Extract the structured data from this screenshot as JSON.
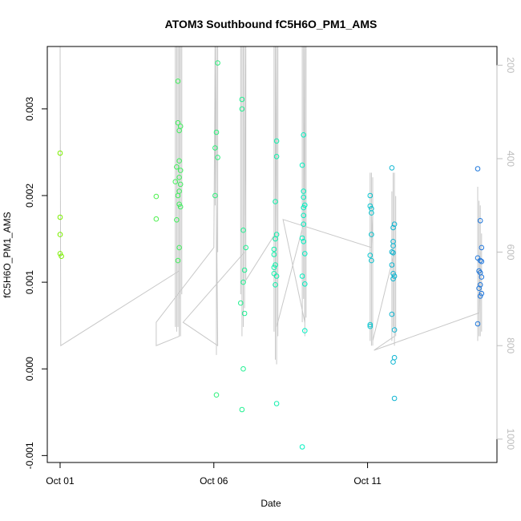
{
  "chart_data": {
    "type": "scatter",
    "title": "ATOM3 Southbound fC5H6O_PM1_AMS",
    "xlabel": "Date",
    "ylabel": "fC5H6O_PM1_AMS",
    "xlim": [
      "2017-09-30T14:00",
      "2017-10-15T05:00"
    ],
    "ylim": [
      -0.00108,
      0.00372
    ],
    "x_ticks": [
      {
        "date": "2017-10-01T00:00",
        "label": "Oct 01"
      },
      {
        "date": "2017-10-06T00:00",
        "label": "Oct 06"
      },
      {
        "date": "2017-10-11T00:00",
        "label": "Oct 11"
      }
    ],
    "y_ticks": [
      {
        "value": -0.001,
        "label": "-0.001"
      },
      {
        "value": 0.0,
        "label": "0.000"
      },
      {
        "value": 0.001,
        "label": "0.001"
      },
      {
        "value": 0.002,
        "label": "0.002"
      },
      {
        "value": 0.003,
        "label": "0.003"
      }
    ],
    "right_axis": {
      "description": "secondary axis (grey trace), reversed",
      "range": [
        1050,
        160
      ],
      "ticks": [
        {
          "value": 200,
          "label": "200"
        },
        {
          "value": 400,
          "label": "400"
        },
        {
          "value": 600,
          "label": "600"
        },
        {
          "value": 800,
          "label": "800"
        },
        {
          "value": 1000,
          "label": "1000"
        }
      ]
    },
    "grid": false,
    "colors": {
      "trace": "#c8c8c8",
      "palette_start": "#7cf000",
      "palette_mid": "#00f0c8",
      "palette_end": "#1e78dc"
    },
    "points": [
      {
        "t": "2017-10-01T00:00",
        "y": 0.00249
      },
      {
        "t": "2017-10-01T00:00",
        "y": 0.00175
      },
      {
        "t": "2017-10-01T00:00",
        "y": 0.00155
      },
      {
        "t": "2017-10-01T00:00",
        "y": 0.00133
      },
      {
        "t": "2017-10-01T01:00",
        "y": 0.0013
      },
      {
        "t": "2017-10-04T03:00",
        "y": 0.00199
      },
      {
        "t": "2017-10-04T03:00",
        "y": 0.00173
      },
      {
        "t": "2017-10-04T20:00",
        "y": 0.00332
      },
      {
        "t": "2017-10-04T20:00",
        "y": 0.00284
      },
      {
        "t": "2017-10-04T19:00",
        "y": 0.00233
      },
      {
        "t": "2017-10-04T18:00",
        "y": 0.00216
      },
      {
        "t": "2017-10-04T20:00",
        "y": 0.002
      },
      {
        "t": "2017-10-04T19:00",
        "y": 0.00172
      },
      {
        "t": "2017-10-04T21:00",
        "y": 0.0014
      },
      {
        "t": "2017-10-04T20:00",
        "y": 0.00125
      },
      {
        "t": "2017-10-04T22:00",
        "y": 0.0028
      },
      {
        "t": "2017-10-04T21:00",
        "y": 0.00275
      },
      {
        "t": "2017-10-04T21:00",
        "y": 0.0024
      },
      {
        "t": "2017-10-04T22:00",
        "y": 0.00229
      },
      {
        "t": "2017-10-04T21:00",
        "y": 0.00221
      },
      {
        "t": "2017-10-04T22:00",
        "y": 0.00213
      },
      {
        "t": "2017-10-04T21:00",
        "y": 0.00205
      },
      {
        "t": "2017-10-04T21:00",
        "y": 0.0019
      },
      {
        "t": "2017-10-04T22:00",
        "y": 0.00187
      },
      {
        "t": "2017-10-06T03:00",
        "y": 0.00353
      },
      {
        "t": "2017-10-06T02:00",
        "y": 0.00273
      },
      {
        "t": "2017-10-06T01:00",
        "y": 0.00255
      },
      {
        "t": "2017-10-06T03:00",
        "y": 0.00244
      },
      {
        "t": "2017-10-06T01:00",
        "y": 0.002
      },
      {
        "t": "2017-10-06T02:00",
        "y": -0.0003
      },
      {
        "t": "2017-10-06T22:00",
        "y": 0.00311
      },
      {
        "t": "2017-10-06T22:00",
        "y": 0.003
      },
      {
        "t": "2017-10-06T23:00",
        "y": 0.0016
      },
      {
        "t": "2017-10-07T01:00",
        "y": 0.0014
      },
      {
        "t": "2017-10-07T00:00",
        "y": 0.00114
      },
      {
        "t": "2017-10-06T23:00",
        "y": 0.001
      },
      {
        "t": "2017-10-06T21:00",
        "y": 0.00076
      },
      {
        "t": "2017-10-07T00:00",
        "y": 0.00064
      },
      {
        "t": "2017-10-06T23:00",
        "y": 0.0
      },
      {
        "t": "2017-10-06T22:00",
        "y": -0.00047
      },
      {
        "t": "2017-10-08T01:00",
        "y": 0.00263
      },
      {
        "t": "2017-10-08T01:00",
        "y": 0.00245
      },
      {
        "t": "2017-10-08T00:00",
        "y": 0.00193
      },
      {
        "t": "2017-10-08T01:00",
        "y": 0.00155
      },
      {
        "t": "2017-10-08T00:00",
        "y": 0.0015
      },
      {
        "t": "2017-10-07T23:00",
        "y": 0.00138
      },
      {
        "t": "2017-10-07T23:00",
        "y": 0.00132
      },
      {
        "t": "2017-10-08T00:00",
        "y": 0.0012
      },
      {
        "t": "2017-10-07T23:00",
        "y": 0.00117
      },
      {
        "t": "2017-10-07T23:00",
        "y": 0.0011
      },
      {
        "t": "2017-10-08T01:00",
        "y": 0.00107
      },
      {
        "t": "2017-10-08T00:00",
        "y": 0.00097
      },
      {
        "t": "2017-10-08T01:00",
        "y": -0.0004
      },
      {
        "t": "2017-10-08T21:00",
        "y": 0.00235
      },
      {
        "t": "2017-10-08T22:00",
        "y": 0.0027
      },
      {
        "t": "2017-10-08T22:00",
        "y": 0.00205
      },
      {
        "t": "2017-10-08T22:00",
        "y": 0.00198
      },
      {
        "t": "2017-10-08T23:00",
        "y": 0.00189
      },
      {
        "t": "2017-10-08T22:00",
        "y": 0.00186
      },
      {
        "t": "2017-10-08T22:00",
        "y": 0.00177
      },
      {
        "t": "2017-10-08T22:00",
        "y": 0.00167
      },
      {
        "t": "2017-10-08T21:00",
        "y": 0.00151
      },
      {
        "t": "2017-10-08T22:00",
        "y": 0.00147
      },
      {
        "t": "2017-10-08T23:00",
        "y": 0.00133
      },
      {
        "t": "2017-10-08T21:00",
        "y": 0.00107
      },
      {
        "t": "2017-10-08T23:00",
        "y": 0.00098
      },
      {
        "t": "2017-10-08T23:00",
        "y": 0.00044
      },
      {
        "t": "2017-10-08T21:00",
        "y": -0.0009
      },
      {
        "t": "2017-10-11T02:00",
        "y": 0.002
      },
      {
        "t": "2017-10-11T02:00",
        "y": 0.00188
      },
      {
        "t": "2017-10-11T03:00",
        "y": 0.00185
      },
      {
        "t": "2017-10-11T03:00",
        "y": 0.0018
      },
      {
        "t": "2017-10-11T03:00",
        "y": 0.00155
      },
      {
        "t": "2017-10-11T02:00",
        "y": 0.00131
      },
      {
        "t": "2017-10-11T03:00",
        "y": 0.00125
      },
      {
        "t": "2017-10-11T02:00",
        "y": 0.00051
      },
      {
        "t": "2017-10-11T02:00",
        "y": 0.00049
      },
      {
        "t": "2017-10-11T19:00",
        "y": 0.00232
      },
      {
        "t": "2017-10-11T20:00",
        "y": 0.00163
      },
      {
        "t": "2017-10-11T21:00",
        "y": 0.00167
      },
      {
        "t": "2017-10-11T20:00",
        "y": 0.00147
      },
      {
        "t": "2017-10-11T20:00",
        "y": 0.00142
      },
      {
        "t": "2017-10-11T19:00",
        "y": 0.00135
      },
      {
        "t": "2017-10-11T20:00",
        "y": 0.00134
      },
      {
        "t": "2017-10-11T19:00",
        "y": 0.0012
      },
      {
        "t": "2017-10-11T20:00",
        "y": 0.0011
      },
      {
        "t": "2017-10-11T21:00",
        "y": 0.00107
      },
      {
        "t": "2017-10-11T20:00",
        "y": 0.00104
      },
      {
        "t": "2017-10-11T19:00",
        "y": 0.00063
      },
      {
        "t": "2017-10-11T21:00",
        "y": 0.00045
      },
      {
        "t": "2017-10-11T21:00",
        "y": 0.00013
      },
      {
        "t": "2017-10-11T20:00",
        "y": 8e-05
      },
      {
        "t": "2017-10-11T21:00",
        "y": -0.00034
      },
      {
        "t": "2017-10-14T14:00",
        "y": 0.00231
      },
      {
        "t": "2017-10-14T16:00",
        "y": 0.00171
      },
      {
        "t": "2017-10-14T17:00",
        "y": 0.0014
      },
      {
        "t": "2017-10-14T14:00",
        "y": 0.00128
      },
      {
        "t": "2017-10-14T16:00",
        "y": 0.00125
      },
      {
        "t": "2017-10-14T17:00",
        "y": 0.00124
      },
      {
        "t": "2017-10-14T15:00",
        "y": 0.00113
      },
      {
        "t": "2017-10-14T16:00",
        "y": 0.00111
      },
      {
        "t": "2017-10-14T17:00",
        "y": 0.00106
      },
      {
        "t": "2017-10-14T16:00",
        "y": 0.00097
      },
      {
        "t": "2017-10-14T15:00",
        "y": 0.00093
      },
      {
        "t": "2017-10-14T17:00",
        "y": 0.00087
      },
      {
        "t": "2017-10-14T16:00",
        "y": 0.00084
      },
      {
        "t": "2017-10-14T14:00",
        "y": 0.00052
      }
    ],
    "trace": [
      {
        "t": "2017-10-01T00:00",
        "r": 160
      },
      {
        "t": "2017-10-01T00:30",
        "r": 800
      },
      {
        "t": "2017-10-04T21:00",
        "r": 640
      },
      {
        "t": "2017-10-04T21:00",
        "r": 160
      },
      {
        "t": "2017-10-04T21:00",
        "r": 780
      },
      {
        "t": "2017-10-04T03:00",
        "r": 800
      },
      {
        "t": "2017-10-04T03:00",
        "r": 750
      },
      {
        "t": "2017-10-06T00:00",
        "r": 590
      },
      {
        "t": "2017-10-06T01:00",
        "r": 160
      },
      {
        "t": "2017-10-06T03:00",
        "r": 800
      },
      {
        "t": "2017-10-05T00:00",
        "r": 750
      },
      {
        "t": "2017-10-07T00:00",
        "r": 600
      },
      {
        "t": "2017-10-07T01:00",
        "r": 160
      },
      {
        "t": "2017-10-07T01:00",
        "r": 660
      },
      {
        "t": "2017-10-08T00:00",
        "r": 560
      },
      {
        "t": "2017-10-08T01:00",
        "r": 160
      },
      {
        "t": "2017-10-08T01:00",
        "r": 760
      },
      {
        "t": "2017-10-08T22:00",
        "r": 540
      },
      {
        "t": "2017-10-08T23:00",
        "r": 160
      },
      {
        "t": "2017-10-08T23:00",
        "r": 750
      },
      {
        "t": "2017-10-08T06:00",
        "r": 530
      },
      {
        "t": "2017-10-11T03:00",
        "r": 590
      },
      {
        "t": "2017-10-11T04:00",
        "r": 520
      },
      {
        "t": "2017-10-11T04:00",
        "r": 790
      },
      {
        "t": "2017-10-11T21:00",
        "r": 600
      },
      {
        "t": "2017-10-11T21:00",
        "r": 780
      },
      {
        "t": "2017-10-11T05:00",
        "r": 810
      },
      {
        "t": "2017-10-14T15:00",
        "r": 730
      },
      {
        "t": "2017-10-14T16:00",
        "r": 600
      }
    ],
    "trace_spikes": [
      {
        "t": "2017-10-04T18:00",
        "r_top": 160,
        "r_bottom": 760
      },
      {
        "t": "2017-10-04T19:00",
        "r_top": 160,
        "r_bottom": 770
      },
      {
        "t": "2017-10-04T20:00",
        "r_top": 160,
        "r_bottom": 760
      },
      {
        "t": "2017-10-04T21:00",
        "r_top": 160,
        "r_bottom": 700
      },
      {
        "t": "2017-10-04T22:00",
        "r_top": 160,
        "r_bottom": 780
      },
      {
        "t": "2017-10-04T23:00",
        "r_top": 160,
        "r_bottom": 690
      },
      {
        "t": "2017-10-06T01:00",
        "r_top": 160,
        "r_bottom": 500
      },
      {
        "t": "2017-10-06T02:00",
        "r_top": 160,
        "r_bottom": 820
      },
      {
        "t": "2017-10-06T03:00",
        "r_top": 160,
        "r_bottom": 600
      },
      {
        "t": "2017-10-06T21:00",
        "r_top": 160,
        "r_bottom": 690
      },
      {
        "t": "2017-10-06T22:00",
        "r_top": 160,
        "r_bottom": 780
      },
      {
        "t": "2017-10-06T23:00",
        "r_top": 160,
        "r_bottom": 760
      },
      {
        "t": "2017-10-07T00:00",
        "r_top": 160,
        "r_bottom": 720
      },
      {
        "t": "2017-10-07T23:00",
        "r_top": 160,
        "r_bottom": 770
      },
      {
        "t": "2017-10-08T00:00",
        "r_top": 160,
        "r_bottom": 830
      },
      {
        "t": "2017-10-08T01:00",
        "r_top": 160,
        "r_bottom": 840
      },
      {
        "t": "2017-10-08T02:00",
        "r_top": 160,
        "r_bottom": 780
      },
      {
        "t": "2017-10-08T21:00",
        "r_top": 160,
        "r_bottom": 750
      },
      {
        "t": "2017-10-08T22:00",
        "r_top": 160,
        "r_bottom": 700
      },
      {
        "t": "2017-10-08T23:00",
        "r_top": 160,
        "r_bottom": 780
      },
      {
        "t": "2017-10-09T00:00",
        "r_top": 160,
        "r_bottom": 740
      },
      {
        "t": "2017-10-11T02:00",
        "r_top": 430,
        "r_bottom": 790
      },
      {
        "t": "2017-10-11T03:00",
        "r_top": 430,
        "r_bottom": 800
      },
      {
        "t": "2017-10-11T04:00",
        "r_top": 440,
        "r_bottom": 800
      },
      {
        "t": "2017-10-11T19:00",
        "r_top": 470,
        "r_bottom": 790
      },
      {
        "t": "2017-10-11T20:00",
        "r_top": 430,
        "r_bottom": 760
      },
      {
        "t": "2017-10-11T21:00",
        "r_top": 430,
        "r_bottom": 800
      },
      {
        "t": "2017-10-11T22:00",
        "r_top": 480,
        "r_bottom": 780
      },
      {
        "t": "2017-10-14T14:00",
        "r_top": 460,
        "r_bottom": 790
      },
      {
        "t": "2017-10-14T15:00",
        "r_top": 490,
        "r_bottom": 780
      },
      {
        "t": "2017-10-14T16:00",
        "r_top": 500,
        "r_bottom": 780
      },
      {
        "t": "2017-10-14T17:00",
        "r_top": 560,
        "r_bottom": 770
      }
    ]
  }
}
